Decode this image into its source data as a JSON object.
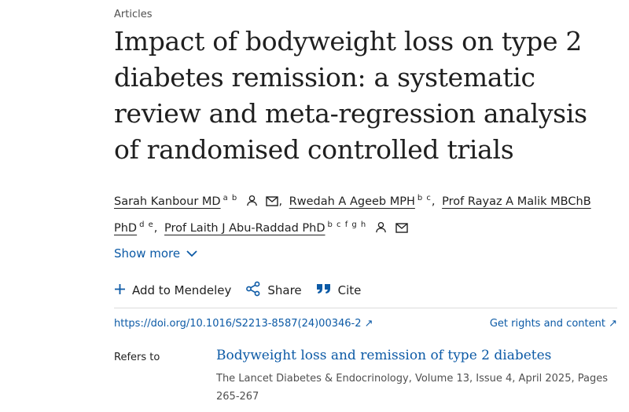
{
  "article": {
    "section": "Articles",
    "title": "Impact of bodyweight loss on type 2 diabetes remission: a systematic review and meta-regression analysis of randomised controlled trials"
  },
  "authors": [
    {
      "name": "Sarah Kanbour MD",
      "affiliations": "a b",
      "has_profile_icon": true,
      "has_email_icon": true
    },
    {
      "name": "Rwedah A Ageeb MPH",
      "affiliations": "b c"
    },
    {
      "name": "Prof Rayaz A Malik MBChB PhD",
      "affiliations": "d e"
    },
    {
      "name": "Prof Laith J Abu-Raddad PhD",
      "affiliations": "b c f g h",
      "has_profile_icon": true,
      "has_email_icon": true
    }
  ],
  "show_more": {
    "label": "Show more"
  },
  "toolbar": {
    "mendeley_label": "Add to Mendeley",
    "share_label": "Share",
    "cite_label": "Cite"
  },
  "links": {
    "doi": "https://doi.org/10.1016/S2213-8587(24)00346-2",
    "rights": "Get rights and content"
  },
  "refers_to": {
    "label": "Refers to",
    "title": "Bodyweight loss and remission of type 2 diabetes",
    "source": "The Lancet Diabetes & Endocrinology, Volume 13, Issue 4, April 2025, Pages 265-267"
  },
  "colors": {
    "link": "#0c5aa6",
    "text": "#1f1f1f",
    "muted": "#505050"
  }
}
